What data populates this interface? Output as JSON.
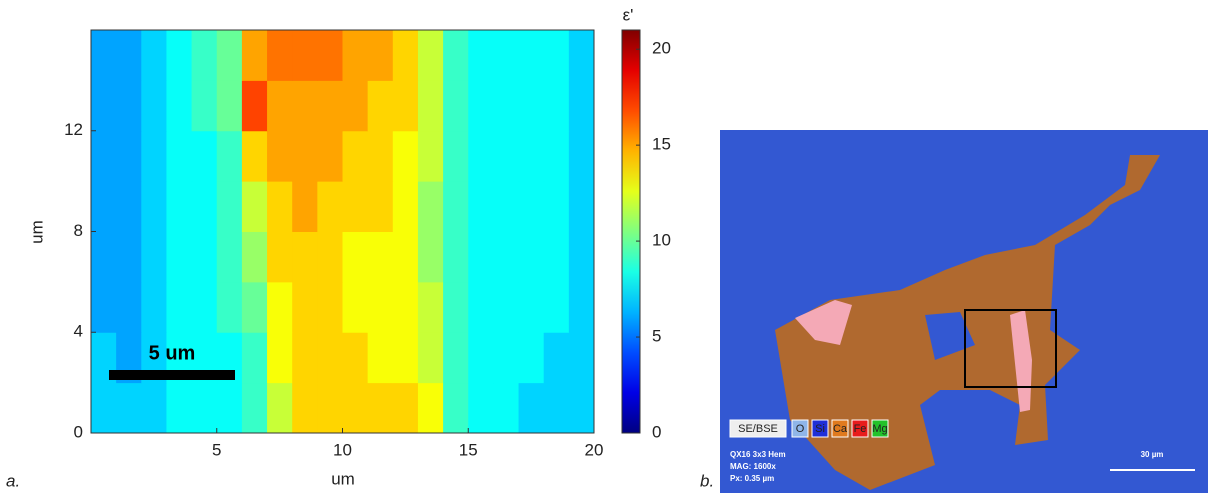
{
  "chart_data": {
    "type": "heatmap",
    "x_label": "um",
    "y_label": "um",
    "colorbar_label": "ε'",
    "xlim": [
      0,
      20
    ],
    "ylim": [
      0,
      16
    ],
    "clim": [
      0,
      21
    ],
    "xticks": [
      5,
      10,
      15,
      20
    ],
    "yticks": [
      0,
      4,
      8,
      12
    ],
    "cticks": [
      0,
      5,
      10,
      15,
      20
    ],
    "colormap": "jet",
    "annotation": "5 um",
    "z": [
      [
        7,
        7,
        7,
        8,
        8,
        8,
        9,
        12,
        14,
        14,
        14,
        14,
        14,
        13,
        9,
        8,
        8,
        7,
        7,
        7
      ],
      [
        7,
        6,
        7,
        8,
        8,
        8,
        9,
        13,
        14,
        14,
        14,
        13,
        13,
        12,
        9,
        8,
        8,
        8,
        7,
        7
      ],
      [
        6,
        6,
        7,
        8,
        8,
        9,
        10,
        13,
        14,
        14,
        13,
        13,
        13,
        12,
        9,
        8,
        8,
        8,
        8,
        7
      ],
      [
        6,
        6,
        7,
        8,
        8,
        9,
        11,
        14,
        14,
        14,
        13,
        13,
        13,
        11,
        9,
        8,
        8,
        8,
        8,
        7
      ],
      [
        6,
        6,
        7,
        8,
        8,
        9,
        12,
        14,
        15,
        14,
        14,
        14,
        13,
        11,
        9,
        8,
        8,
        8,
        8,
        7
      ],
      [
        6,
        6,
        7,
        8,
        8,
        9,
        14,
        15,
        15,
        15,
        14,
        14,
        13,
        12,
        9,
        8,
        8,
        8,
        8,
        7
      ],
      [
        6,
        6,
        7,
        8,
        9,
        10,
        17,
        15,
        15,
        15,
        15,
        14,
        14,
        12,
        9,
        8,
        8,
        8,
        8,
        7
      ],
      [
        6,
        6,
        7,
        8,
        9,
        10,
        15,
        16,
        16,
        16,
        15,
        15,
        14,
        12,
        9,
        8,
        8,
        8,
        8,
        7
      ]
    ]
  },
  "panel_a_label": "a.",
  "panel_b_label": "b.",
  "micrograph": {
    "legend": [
      "SE/BSE",
      "O",
      "Si",
      "Ca",
      "Fe",
      "Mg"
    ],
    "info": [
      "QX16 3x3 Hem",
      "MAG: 1600x",
      "Px: 0.35 µm"
    ],
    "scale_label": "30 µm"
  }
}
